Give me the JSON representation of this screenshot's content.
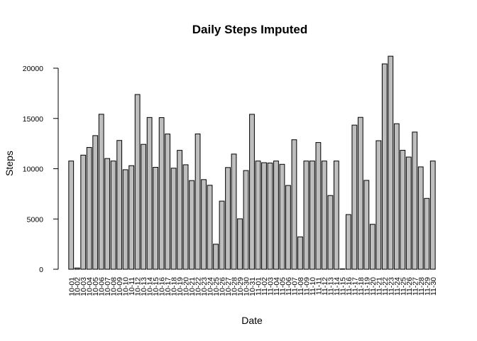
{
  "chart_data": {
    "type": "bar",
    "title": "Daily Steps Imputed",
    "xlabel": "Date",
    "ylabel": "Steps",
    "ylim": [
      0,
      22000
    ],
    "yticks": [
      0,
      5000,
      10000,
      15000,
      20000
    ],
    "grid": false,
    "bar_color": "#bebebe",
    "categories": [
      "10-01",
      "10-02",
      "10-03",
      "10-04",
      "10-05",
      "10-06",
      "10-07",
      "10-08",
      "10-09",
      "10-10",
      "10-11",
      "10-12",
      "10-13",
      "10-14",
      "10-15",
      "10-16",
      "10-17",
      "10-18",
      "10-19",
      "10-20",
      "10-21",
      "10-22",
      "10-23",
      "10-24",
      "10-25",
      "10-26",
      "10-27",
      "10-28",
      "10-29",
      "10-30",
      "10-31",
      "11-01",
      "11-02",
      "11-03",
      "11-04",
      "11-05",
      "11-06",
      "11-07",
      "11-08",
      "11-09",
      "11-10",
      "11-11",
      "11-12",
      "11-13",
      "11-14",
      "11-15",
      "11-16",
      "11-17",
      "11-18",
      "11-19",
      "11-20",
      "11-21",
      "11-22",
      "11-23",
      "11-24",
      "11-25",
      "11-26",
      "11-27",
      "11-28",
      "11-29",
      "11-30"
    ],
    "values": [
      10766,
      126,
      11352,
      12116,
      13294,
      15420,
      11015,
      10766,
      12811,
      9900,
      10304,
      17382,
      12426,
      15098,
      10139,
      15084,
      13452,
      10056,
      11829,
      10395,
      8821,
      13460,
      8918,
      8355,
      2492,
      6778,
      10119,
      11458,
      5018,
      9819,
      15414,
      10766,
      10600,
      10571,
      10766,
      10439,
      8334,
      12883,
      3219,
      10766,
      10766,
      12608,
      10765,
      7336,
      10766,
      41,
      5441,
      14339,
      15110,
      8841,
      4472,
      12787,
      20427,
      21194,
      14478,
      11834,
      11162,
      13646,
      10183,
      7047,
      10766
    ]
  }
}
